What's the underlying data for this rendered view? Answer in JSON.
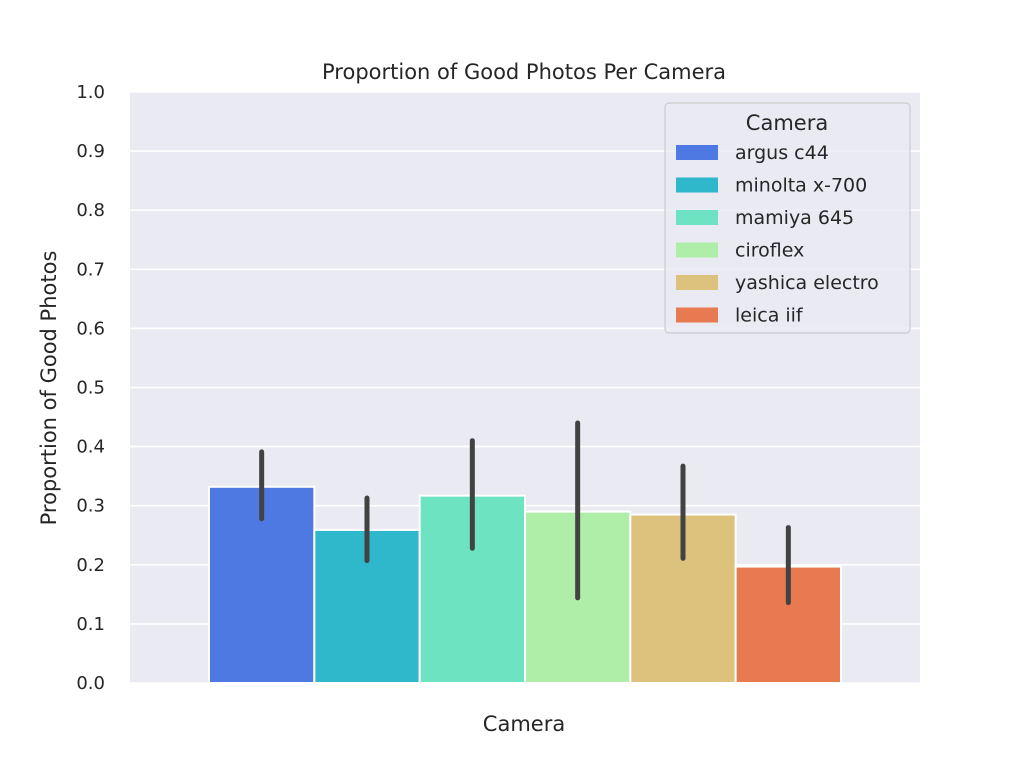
{
  "chart_data": {
    "type": "bar",
    "title": "Proportion of Good Photos Per Camera",
    "xlabel": "Camera",
    "ylabel": "Proportion of Good Photos",
    "ylim": [
      0.0,
      1.0
    ],
    "yticks": [
      "0.0",
      "0.1",
      "0.2",
      "0.3",
      "0.4",
      "0.5",
      "0.6",
      "0.7",
      "0.8",
      "0.9",
      "1.0"
    ],
    "grid": true,
    "legend": {
      "title": "Camera",
      "position": "top-right"
    },
    "series": [
      {
        "name": "argus c44",
        "value": 0.332,
        "err_low": 0.278,
        "err_high": 0.391,
        "color": "#4f79e2"
      },
      {
        "name": "minolta x-700",
        "value": 0.259,
        "err_low": 0.207,
        "err_high": 0.313,
        "color": "#2fb7cc"
      },
      {
        "name": "mamiya 645",
        "value": 0.317,
        "err_low": 0.228,
        "err_high": 0.41,
        "color": "#6de3c2"
      },
      {
        "name": "ciroflex",
        "value": 0.29,
        "err_low": 0.144,
        "err_high": 0.44,
        "color": "#aeeea8"
      },
      {
        "name": "yashica electro",
        "value": 0.285,
        "err_low": 0.211,
        "err_high": 0.367,
        "color": "#dcc27d"
      },
      {
        "name": "leica iif",
        "value": 0.197,
        "err_low": 0.136,
        "err_high": 0.263,
        "color": "#e77a50"
      }
    ]
  }
}
